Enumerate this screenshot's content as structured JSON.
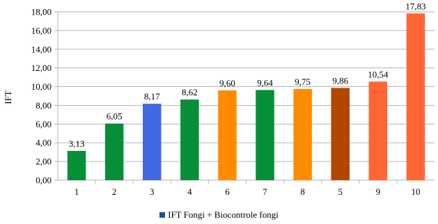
{
  "chart_data": {
    "type": "bar",
    "categories": [
      "1",
      "2",
      "3",
      "4",
      "6",
      "7",
      "8",
      "5",
      "9",
      "10"
    ],
    "values": [
      3.13,
      6.05,
      8.17,
      8.62,
      9.6,
      9.64,
      9.75,
      9.86,
      10.54,
      17.83
    ],
    "value_labels": [
      "3,13",
      "6,05",
      "8,17",
      "8,62",
      "9,60",
      "9,64",
      "9,75",
      "9,86",
      "10,54",
      "17,83"
    ],
    "bar_colors": [
      "#078f37",
      "#078f37",
      "#4169e1",
      "#078f37",
      "#ff8c00",
      "#078f37",
      "#ff8c00",
      "#b34700",
      "#ff6633",
      "#ff6633"
    ],
    "ylabel": "IFT",
    "xlabel": "",
    "ylim": [
      0,
      18
    ],
    "yticks": [
      0,
      2,
      4,
      6,
      8,
      10,
      12,
      14,
      16,
      18
    ],
    "ytick_labels": [
      "0,00",
      "2,00",
      "4,00",
      "6,00",
      "8,00",
      "10,00",
      "12,00",
      "14,00",
      "16,00",
      "18,00"
    ],
    "grid": true,
    "legend_position": "bottom",
    "legend": [
      {
        "label": "IFT Fongi + Biocontrole fongi",
        "color": "#1f4e9b"
      }
    ]
  }
}
